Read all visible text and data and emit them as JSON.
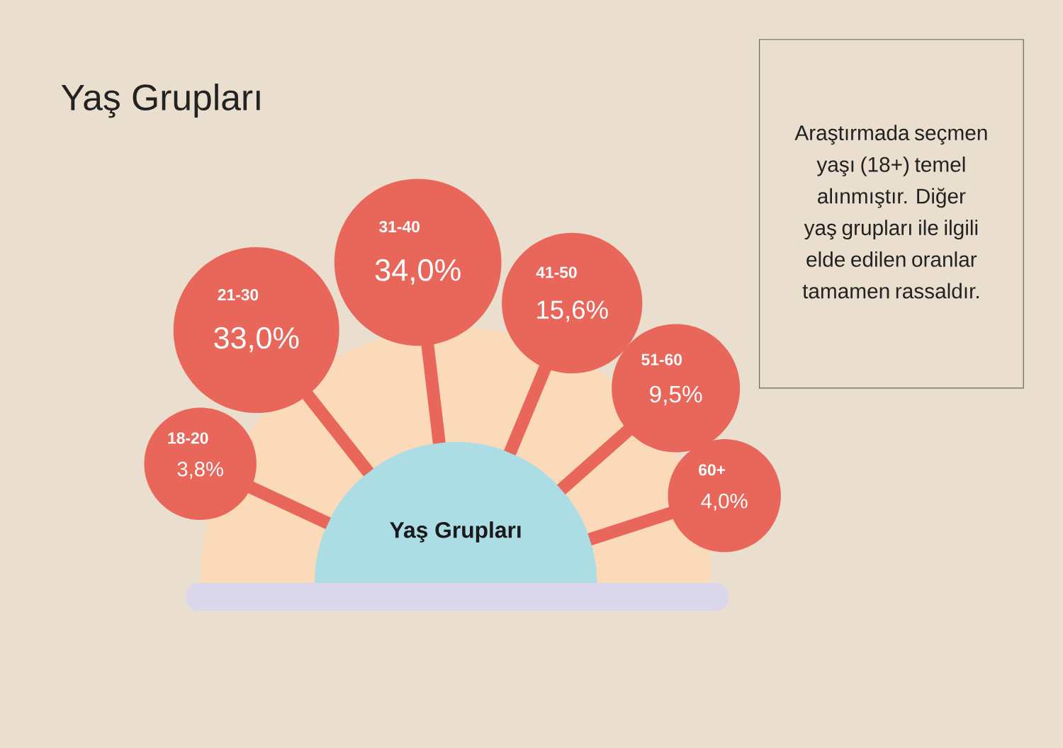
{
  "chart_data": {
    "type": "other",
    "title": "Yaş Grupları",
    "categories": [
      "18-20",
      "21-30",
      "31-40",
      "41-50",
      "51-60",
      "60+"
    ],
    "values": [
      3.8,
      33.0,
      34.0,
      15.6,
      9.5,
      4.0
    ],
    "value_labels": [
      "3,8%",
      "33,0%",
      "34,0%",
      "15,6%",
      "9,5%",
      "4,0%"
    ],
    "color": "#e8675a",
    "annotations": [
      "Araştırmada seçmen yaşı (18+) temel alınmıştır. Diğer yaş grupları ile ilgili elde edilen oranlar tamamen rassaldır.",
      "Yaş Grupları"
    ]
  }
}
